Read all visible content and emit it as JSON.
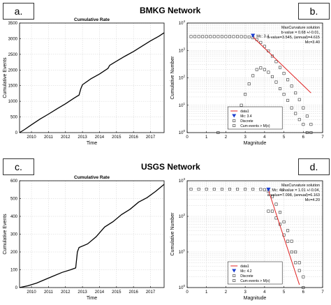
{
  "panels": {
    "a": {
      "letter": "a."
    },
    "b": {
      "letter": "b."
    },
    "c": {
      "letter": "c."
    },
    "d": {
      "letter": "d."
    }
  },
  "titles": {
    "bmkg": "BMKG Network",
    "usgs": "USGS Network"
  },
  "chart_data": [
    {
      "id": "a",
      "type": "line",
      "title": "Cumulative Rate",
      "xlabel": "Time",
      "ylabel": "Cumulative Events",
      "xlim": [
        2009.3,
        2017.8
      ],
      "ylim": [
        0,
        3500
      ],
      "xticks": [
        2010,
        2011,
        2012,
        2013,
        2014,
        2015,
        2016,
        2017
      ],
      "yticks": [
        0,
        500,
        1000,
        1500,
        2000,
        2500,
        3000,
        3500
      ],
      "grid": true,
      "series": [
        {
          "x": [
            2009.3,
            2009.6,
            2010.0,
            2010.5,
            2011.0,
            2011.5,
            2012.0,
            2012.5,
            2012.8,
            2012.9,
            2013.0,
            2013.5,
            2014.0,
            2014.5,
            2014.6,
            2015.0,
            2015.5,
            2016.0,
            2016.5,
            2017.0,
            2017.5,
            2017.8
          ],
          "y": [
            0,
            100,
            250,
            430,
            590,
            760,
            920,
            1100,
            1200,
            1400,
            1530,
            1720,
            1870,
            2050,
            2150,
            2280,
            2440,
            2590,
            2760,
            2930,
            3080,
            3190
          ]
        }
      ]
    },
    {
      "id": "b",
      "type": "scatter",
      "xlabel": "Magnitude",
      "ylabel": "Cumulative Number",
      "xlim": [
        0,
        7
      ],
      "yscale": "log",
      "ylim": [
        1,
        10000
      ],
      "xticks": [
        0,
        1,
        2,
        3,
        4,
        5,
        6,
        7
      ],
      "yticks_exp": [
        0,
        1,
        2,
        3,
        4
      ],
      "tick_base": "10",
      "grid": true,
      "annotation": [
        "MaxCurvature solution",
        "b-value = 0.68 +/-0.01,",
        "a-value=3.545, (annual)=4.615",
        "Mc=3.40"
      ],
      "mc_label": "Mc: 3.4",
      "mc": {
        "x": 3.4,
        "y": 3400
      },
      "cumulative": {
        "x": [
          0.2,
          0.4,
          0.6,
          0.8,
          1.0,
          1.2,
          1.4,
          1.6,
          1.8,
          2.0,
          2.2,
          2.4,
          2.6,
          2.8,
          3.0,
          3.2,
          3.4,
          3.6,
          3.8,
          4.0,
          4.2,
          4.4,
          4.6,
          4.8,
          5.0,
          5.2,
          5.4,
          5.6,
          5.8,
          6.0,
          6.2,
          6.4
        ],
        "y": [
          3200,
          3200,
          3200,
          3200,
          3200,
          3200,
          3200,
          3200,
          3200,
          3200,
          3200,
          3200,
          3200,
          3190,
          3170,
          3100,
          2900,
          2500,
          1950,
          1400,
          960,
          620,
          390,
          240,
          145,
          85,
          50,
          28,
          16,
          8,
          4,
          2
        ]
      },
      "discrete": {
        "x": [
          1.6,
          2.4,
          2.6,
          2.8,
          3.0,
          3.2,
          3.4,
          3.6,
          3.8,
          4.0,
          4.2,
          4.4,
          4.6,
          4.8,
          5.0,
          5.2,
          5.4,
          5.6,
          5.8,
          6.0,
          6.2,
          6.4
        ],
        "y": [
          1,
          2,
          4,
          10,
          25,
          60,
          120,
          200,
          230,
          200,
          160,
          110,
          70,
          40,
          25,
          15,
          8,
          5,
          3,
          2,
          1,
          1
        ]
      },
      "fit": {
        "x": [
          3.4,
          6.4
        ],
        "y": [
          3100,
          28
        ]
      },
      "legend": [
        "data1",
        "Mc: 3.4",
        "Discrete",
        "Cum events > M(x)"
      ],
      "legend_position": "lower-center"
    },
    {
      "id": "c",
      "type": "line",
      "title": "Cumulative Rate",
      "xlabel": "Time",
      "ylabel": "Cumulative Events",
      "xlim": [
        2009.3,
        2017.8
      ],
      "ylim": [
        0,
        600
      ],
      "xticks": [
        2010,
        2011,
        2012,
        2013,
        2014,
        2015,
        2016,
        2017
      ],
      "yticks": [
        0,
        100,
        200,
        300,
        400,
        500,
        600
      ],
      "grid": true,
      "series": [
        {
          "x": [
            2009.3,
            2009.8,
            2010.3,
            2010.8,
            2011.3,
            2011.8,
            2012.3,
            2012.6,
            2012.7,
            2012.8,
            2013.3,
            2013.8,
            2014.3,
            2014.8,
            2015.3,
            2015.8,
            2016.3,
            2016.8,
            2017.3,
            2017.8
          ],
          "y": [
            0,
            10,
            25,
            45,
            65,
            85,
            100,
            110,
            200,
            225,
            245,
            285,
            340,
            370,
            410,
            440,
            480,
            505,
            540,
            580
          ]
        }
      ]
    },
    {
      "id": "d",
      "type": "scatter",
      "xlabel": "Magnitude",
      "ylabel": "Cumulative Number",
      "xlim": [
        0,
        7
      ],
      "yscale": "log",
      "ylim": [
        1,
        1000
      ],
      "xticks": [
        0,
        1,
        2,
        3,
        4,
        5,
        6,
        7
      ],
      "yticks_exp": [
        0,
        1,
        2,
        3
      ],
      "tick_base": "10",
      "grid": true,
      "annotation": [
        "MaxCurvature solution",
        "b-value = 1.01 +/-0.04,",
        "a-value=7.098, (annual)=6.163",
        "Mc=4.20"
      ],
      "mc_label": "Mc: 4.2",
      "mc": {
        "x": 4.2,
        "y": 560
      },
      "cumulative": {
        "x": [
          0.2,
          0.6,
          1.0,
          1.4,
          1.8,
          2.2,
          2.6,
          3.0,
          3.4,
          3.8,
          4.0,
          4.2,
          4.4,
          4.6,
          4.8,
          5.0,
          5.2,
          5.4,
          5.6,
          5.8,
          6.0
        ],
        "y": [
          580,
          580,
          580,
          580,
          580,
          580,
          580,
          580,
          580,
          575,
          560,
          500,
          360,
          220,
          130,
          70,
          40,
          20,
          10,
          5,
          2
        ]
      },
      "discrete": {
        "x": [
          4.2,
          4.4,
          4.6,
          4.8,
          5.0,
          5.2,
          5.4,
          5.6,
          5.8,
          6.0
        ],
        "y": [
          140,
          140,
          90,
          60,
          30,
          20,
          10,
          5,
          3,
          1
        ]
      },
      "fit": {
        "x": [
          4.2,
          5.8
        ],
        "y": [
          540,
          1.2
        ]
      },
      "legend": [
        "data1",
        "Mc: 4.2",
        "Discrete",
        "Cum events > M(x)"
      ],
      "legend_position": "lower-center"
    }
  ]
}
